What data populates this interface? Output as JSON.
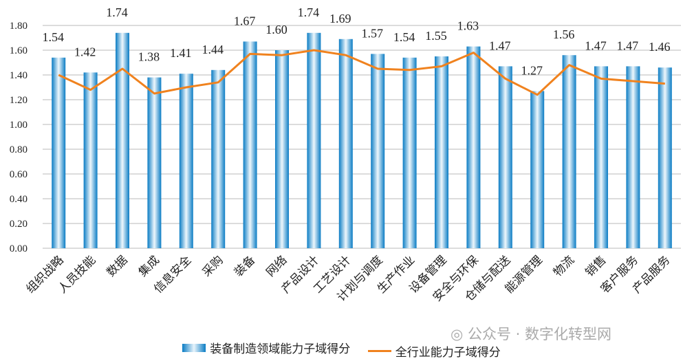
{
  "chart_data": {
    "type": "bar",
    "title": "",
    "categories": [
      "组织战略",
      "人员技能",
      "数据",
      "集成",
      "信息安全",
      "采购",
      "装备",
      "网络",
      "产品设计",
      "工艺设计",
      "计划与调度",
      "生产作业",
      "设备管理",
      "安全与环保",
      "仓储与配送",
      "能源管理",
      "物流",
      "销售",
      "客户服务",
      "产品服务"
    ],
    "series": [
      {
        "name": "装备制造领域能力子域得分",
        "type": "bar",
        "color": "#0a7cc4",
        "values": [
          1.54,
          1.42,
          1.74,
          1.38,
          1.41,
          1.44,
          1.67,
          1.6,
          1.74,
          1.69,
          1.57,
          1.54,
          1.55,
          1.63,
          1.47,
          1.27,
          1.56,
          1.47,
          1.47,
          1.46
        ],
        "labels": [
          "1.54",
          "1.42",
          "1.74",
          "1.38",
          "1.41",
          "1.44",
          "1.67",
          "1.60",
          "1.74",
          "1.69",
          "1.57",
          "1.54",
          "1.55",
          "1.63",
          "1.47",
          "1.27",
          "1.56",
          "1.47",
          "1.47",
          "1.46"
        ]
      },
      {
        "name": "全行业能力子域得分",
        "type": "line",
        "color": "#f0821e",
        "values": [
          1.4,
          1.28,
          1.45,
          1.25,
          1.3,
          1.34,
          1.57,
          1.56,
          1.6,
          1.56,
          1.45,
          1.44,
          1.47,
          1.58,
          1.37,
          1.24,
          1.48,
          1.37,
          1.35,
          1.33
        ]
      }
    ],
    "ylim": [
      0,
      1.8
    ],
    "yticks": [
      "0.00",
      "0.20",
      "0.40",
      "0.60",
      "0.80",
      "1.00",
      "1.20",
      "1.40",
      "1.60",
      "1.80"
    ],
    "grid": true,
    "legend": "bottom"
  },
  "watermark": "公众号 · 数字化转型网"
}
